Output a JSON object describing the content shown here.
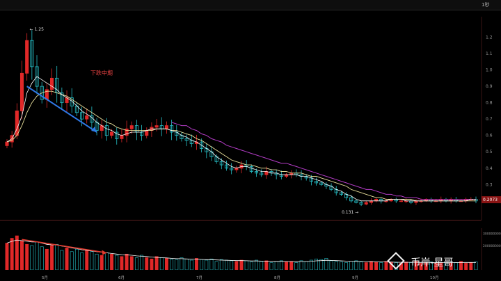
{
  "app": {
    "toolbar_items": [],
    "interval_tabs": [],
    "right_label": "1秒"
  },
  "info_bar": {
    "fields": []
  },
  "volume_header": {
    "fields": []
  },
  "indicator_tabs": [],
  "watermark": {
    "text": "币岸-星哥"
  },
  "colors": {
    "up": "#e02828",
    "down": "#26c0c8",
    "ma_short": "#ffffff",
    "ma_mid": "#e9e09c",
    "ma_long": "#b53dc8",
    "trend_arrow": "#2f79e8",
    "volume_arrow": "#e23a2e",
    "annotation": "#e04040",
    "current_price_bg": "#8a1414"
  },
  "chart_data": [
    {
      "type": "candlestick",
      "title": "",
      "annotation": "下跌中期",
      "y_axis_labels": [
        "1.2",
        "1.1",
        "1.0",
        "0.9",
        "0.8",
        "0.7",
        "0.6",
        "0.5",
        "0.4",
        "0.3"
      ],
      "ylim": [
        0.11,
        1.3
      ],
      "x_months": [
        "5月",
        "6月",
        "7月",
        "8月",
        "9月",
        "10月"
      ],
      "high_label": "1.25",
      "low_label": "0.131",
      "current_price": "0.2073",
      "grid": false,
      "close_series": [
        0.56,
        0.6,
        0.75,
        0.98,
        1.18,
        1.02,
        0.9,
        0.82,
        0.88,
        0.95,
        0.86,
        0.8,
        0.83,
        0.78,
        0.74,
        0.7,
        0.72,
        0.68,
        0.63,
        0.66,
        0.6,
        0.62,
        0.58,
        0.6,
        0.64,
        0.66,
        0.62,
        0.6,
        0.63,
        0.65,
        0.66,
        0.64,
        0.66,
        0.62,
        0.6,
        0.58,
        0.57,
        0.55,
        0.56,
        0.52,
        0.5,
        0.47,
        0.44,
        0.42,
        0.4,
        0.39,
        0.4,
        0.42,
        0.41,
        0.38,
        0.37,
        0.36,
        0.38,
        0.37,
        0.36,
        0.35,
        0.36,
        0.37,
        0.36,
        0.35,
        0.34,
        0.32,
        0.31,
        0.3,
        0.29,
        0.27,
        0.25,
        0.24,
        0.22,
        0.2,
        0.19,
        0.18,
        0.19,
        0.2,
        0.21,
        0.2,
        0.2,
        0.21,
        0.2,
        0.2,
        0.2,
        0.19,
        0.2,
        0.2,
        0.21,
        0.2,
        0.2,
        0.21,
        0.2,
        0.21,
        0.2,
        0.2,
        0.21,
        0.21,
        0.2
      ],
      "ma_short_series": [
        0.56,
        0.58,
        0.64,
        0.72,
        0.86,
        0.92,
        0.96,
        0.94,
        0.92,
        0.9,
        0.88,
        0.85,
        0.83,
        0.81,
        0.78,
        0.75,
        0.73,
        0.71,
        0.68,
        0.66,
        0.64,
        0.63,
        0.61,
        0.6,
        0.61,
        0.62,
        0.62,
        0.62,
        0.63,
        0.64,
        0.64,
        0.64,
        0.64,
        0.63,
        0.62,
        0.6,
        0.59,
        0.57,
        0.56,
        0.54,
        0.52,
        0.5,
        0.47,
        0.45,
        0.43,
        0.41,
        0.4,
        0.41,
        0.41,
        0.4,
        0.39,
        0.38,
        0.38,
        0.37,
        0.37,
        0.36,
        0.36,
        0.36,
        0.36,
        0.35,
        0.35,
        0.34,
        0.33,
        0.32,
        0.3,
        0.29,
        0.27,
        0.26,
        0.24,
        0.23,
        0.21,
        0.2,
        0.2,
        0.2,
        0.2,
        0.2,
        0.2,
        0.21,
        0.21,
        0.21,
        0.2,
        0.2,
        0.2,
        0.2,
        0.2,
        0.2,
        0.2,
        0.2,
        0.2,
        0.2,
        0.2,
        0.2,
        0.2,
        0.21,
        0.21
      ],
      "ma_mid_series": [
        0.56,
        0.57,
        0.6,
        0.66,
        0.74,
        0.8,
        0.84,
        0.86,
        0.87,
        0.87,
        0.86,
        0.85,
        0.84,
        0.82,
        0.8,
        0.78,
        0.76,
        0.74,
        0.72,
        0.7,
        0.68,
        0.67,
        0.65,
        0.64,
        0.63,
        0.63,
        0.63,
        0.63,
        0.63,
        0.63,
        0.64,
        0.64,
        0.64,
        0.63,
        0.63,
        0.62,
        0.61,
        0.6,
        0.58,
        0.57,
        0.55,
        0.53,
        0.51,
        0.49,
        0.47,
        0.45,
        0.44,
        0.43,
        0.42,
        0.42,
        0.41,
        0.4,
        0.4,
        0.39,
        0.39,
        0.38,
        0.38,
        0.37,
        0.37,
        0.37,
        0.36,
        0.35,
        0.35,
        0.34,
        0.33,
        0.32,
        0.31,
        0.3,
        0.29,
        0.27,
        0.26,
        0.25,
        0.24,
        0.23,
        0.22,
        0.22,
        0.21,
        0.21,
        0.21,
        0.21,
        0.21,
        0.21,
        0.2,
        0.2,
        0.2,
        0.2,
        0.2,
        0.2,
        0.2,
        0.2,
        0.2,
        0.2,
        0.2,
        0.2,
        0.2
      ],
      "ma_long_series": [
        null,
        null,
        null,
        null,
        null,
        null,
        null,
        null,
        null,
        null,
        null,
        null,
        null,
        null,
        null,
        null,
        null,
        null,
        null,
        null,
        null,
        null,
        null,
        null,
        null,
        null,
        null,
        null,
        null,
        null,
        null,
        null,
        null,
        0.68,
        0.67,
        0.66,
        0.66,
        0.64,
        0.63,
        0.61,
        0.6,
        0.58,
        0.57,
        0.56,
        0.54,
        0.53,
        0.52,
        0.51,
        0.5,
        0.49,
        0.48,
        0.47,
        0.46,
        0.45,
        0.44,
        0.43,
        0.43,
        0.42,
        0.41,
        0.4,
        0.39,
        0.38,
        0.37,
        0.36,
        0.35,
        0.34,
        0.33,
        0.32,
        0.31,
        0.3,
        0.29,
        0.28,
        0.27,
        0.27,
        0.26,
        0.25,
        0.24,
        0.24,
        0.23,
        0.23,
        0.22,
        0.22,
        0.22,
        0.21,
        0.21,
        0.21,
        0.21,
        0.21,
        0.21,
        0.21,
        0.21,
        0.21,
        0.21,
        0.21,
        0.21
      ]
    },
    {
      "type": "bar",
      "title": "",
      "y_axis_labels": [
        "300000000",
        "200000000"
      ],
      "ylim": [
        0,
        320000000
      ],
      "grid": false,
      "volume_series": [
        220,
        260,
        280,
        240,
        210,
        200,
        230,
        190,
        170,
        200,
        210,
        160,
        180,
        150,
        170,
        140,
        160,
        150,
        130,
        120,
        140,
        130,
        120,
        110,
        130,
        110,
        100,
        120,
        100,
        90,
        110,
        100,
        95,
        90,
        85,
        100,
        90,
        80,
        95,
        85,
        80,
        90,
        70,
        85,
        80,
        75,
        70,
        80,
        75,
        65,
        80,
        70,
        75,
        60,
        70,
        75,
        65,
        70,
        60,
        75,
        70,
        80,
        90,
        85,
        95,
        75,
        70,
        65,
        60,
        70,
        75,
        65,
        60,
        70,
        65,
        60,
        70,
        65,
        60,
        55,
        65,
        60,
        70,
        55,
        60,
        65,
        55,
        60,
        65,
        55,
        60,
        70,
        55,
        60,
        65
      ],
      "ma_vol_series": [
        220,
        235,
        245,
        240,
        235,
        230,
        230,
        220,
        210,
        205,
        205,
        195,
        190,
        180,
        175,
        165,
        160,
        155,
        150,
        145,
        140,
        135,
        130,
        125,
        123,
        120,
        115,
        112,
        110,
        105,
        103,
        100,
        98,
        95,
        92,
        92,
        90,
        88,
        88,
        86,
        84,
        84,
        82,
        80,
        79,
        78,
        76,
        76,
        75,
        73,
        73,
        72,
        72,
        70,
        70,
        70,
        69,
        68,
        67,
        68,
        69,
        71,
        74,
        76,
        79,
        78,
        76,
        74,
        72,
        71,
        70,
        69,
        68,
        67,
        66,
        65,
        65,
        64,
        63,
        62,
        62,
        62,
        62,
        61,
        61,
        61,
        60,
        60,
        60,
        60,
        60,
        61,
        61,
        61,
        61
      ]
    }
  ]
}
